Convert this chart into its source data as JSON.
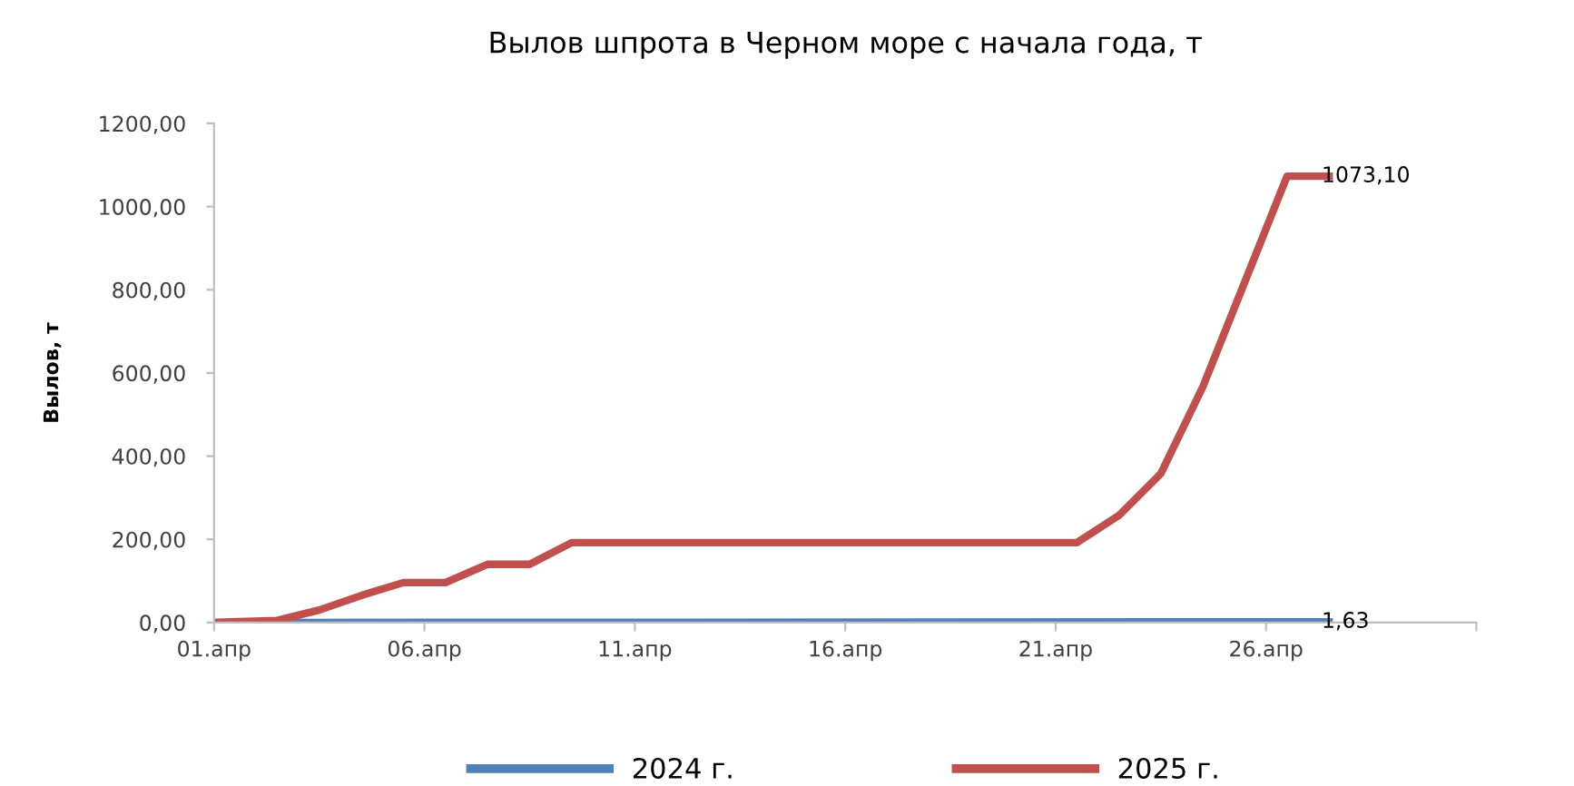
{
  "chart_data": {
    "type": "line",
    "title": "Вылов шпрота в Черном море с начала года, т",
    "ylabel": "Вылов, т",
    "xlim": [
      1,
      31
    ],
    "xticks": [
      {
        "value": 1,
        "label": "01.апр"
      },
      {
        "value": 6,
        "label": "06.апр"
      },
      {
        "value": 11,
        "label": "11.апр"
      },
      {
        "value": 16,
        "label": "16.апр"
      },
      {
        "value": 21,
        "label": "21.апр"
      },
      {
        "value": 26,
        "label": "26.апр"
      },
      {
        "value": 31,
        "label": null
      }
    ],
    "ylim": [
      0,
      1200
    ],
    "yticks": [
      {
        "value": 0,
        "label": "0,00"
      },
      {
        "value": 200,
        "label": "200,00"
      },
      {
        "value": 400,
        "label": "400,00"
      },
      {
        "value": 600,
        "label": "600,00"
      },
      {
        "value": 800,
        "label": "800,00"
      },
      {
        "value": 1000,
        "label": "1000,00"
      },
      {
        "value": 1200,
        "label": "1200,00"
      }
    ],
    "grid": false,
    "legend": "bottom",
    "marker": "none",
    "line_style": "solid",
    "series": [
      {
        "name": "2024 г.",
        "color": "#4f81bd",
        "x": [
          1,
          27.5
        ],
        "values": [
          0,
          1.63
        ],
        "value_labels": [
          null,
          "1,63"
        ]
      },
      {
        "name": "2025 г.",
        "color": "#c0504d",
        "x": [
          1,
          2.5,
          3.5,
          4.5,
          5.5,
          6.5,
          7.5,
          8.5,
          9.5,
          21.5,
          22.5,
          23.5,
          24.5,
          25.5,
          26.5,
          27.5
        ],
        "values": [
          0,
          5,
          30,
          65,
          96,
          96,
          140,
          140,
          192,
          192,
          257,
          358,
          567,
          820,
          1073.1,
          1073.1
        ],
        "value_labels": [
          null,
          null,
          null,
          null,
          null,
          null,
          null,
          null,
          null,
          null,
          null,
          null,
          null,
          null,
          null,
          "1073,10"
        ]
      }
    ]
  }
}
